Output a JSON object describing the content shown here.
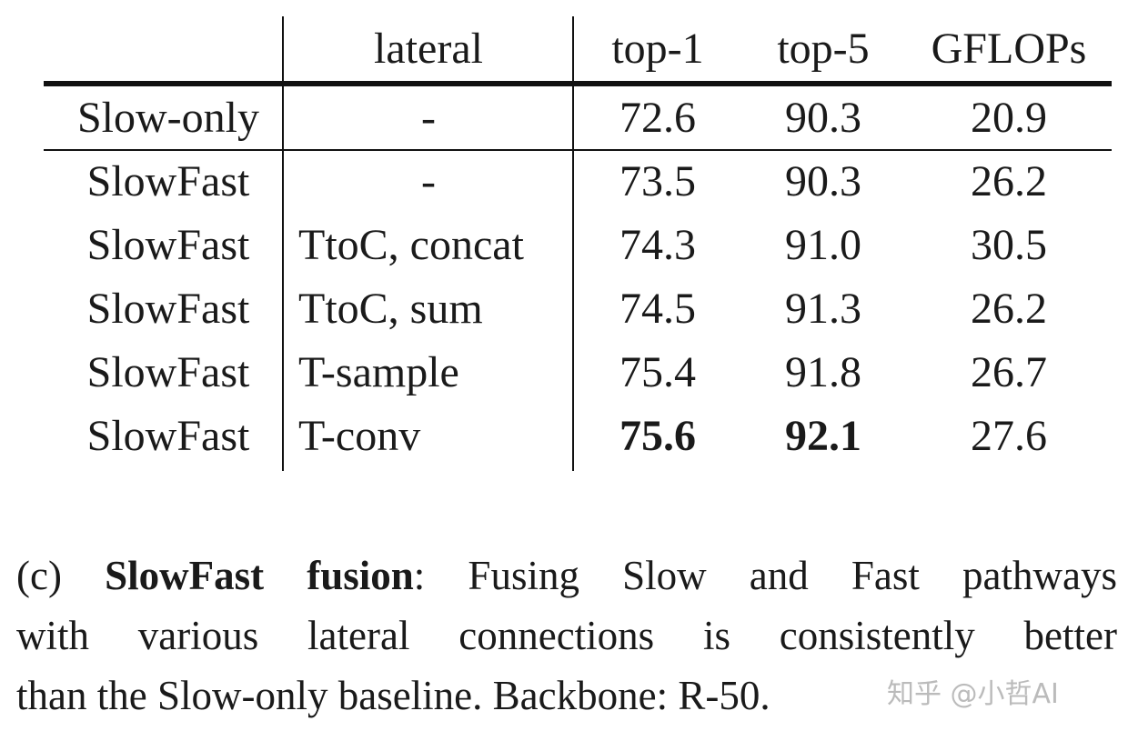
{
  "table": {
    "columns": [
      "",
      "lateral",
      "top-1",
      "top-5",
      "GFLOPs"
    ],
    "rows": [
      {
        "name": "Slow-only",
        "lateral": "-",
        "top1": "72.6",
        "top5": "90.3",
        "gflops": "20.9"
      },
      {
        "name": "SlowFast",
        "lateral": "-",
        "top1": "73.5",
        "top5": "90.3",
        "gflops": "26.2"
      },
      {
        "name": "SlowFast",
        "lateral": "TtoC, concat",
        "top1": "74.3",
        "top5": "91.0",
        "gflops": "30.5"
      },
      {
        "name": "SlowFast",
        "lateral": "TtoC, sum",
        "top1": "74.5",
        "top5": "91.3",
        "gflops": "26.2"
      },
      {
        "name": "SlowFast",
        "lateral": "T-sample",
        "top1": "75.4",
        "top5": "91.8",
        "gflops": "26.7"
      },
      {
        "name": "SlowFast",
        "lateral": "T-conv",
        "top1": "75.6",
        "top5": "92.1",
        "gflops": "27.6"
      }
    ],
    "bold_cells": [
      "rows.5.top1",
      "rows.5.top5"
    ]
  },
  "caption": {
    "label": "(c)",
    "bold_title": "SlowFast fusion",
    "line1_rest": ": Fusing Slow and Fast pathways",
    "line2": "with various lateral connections is consistently better",
    "line3": "than the Slow-only baseline. Backbone: R-50."
  },
  "watermark": "知乎 @小哲AI"
}
